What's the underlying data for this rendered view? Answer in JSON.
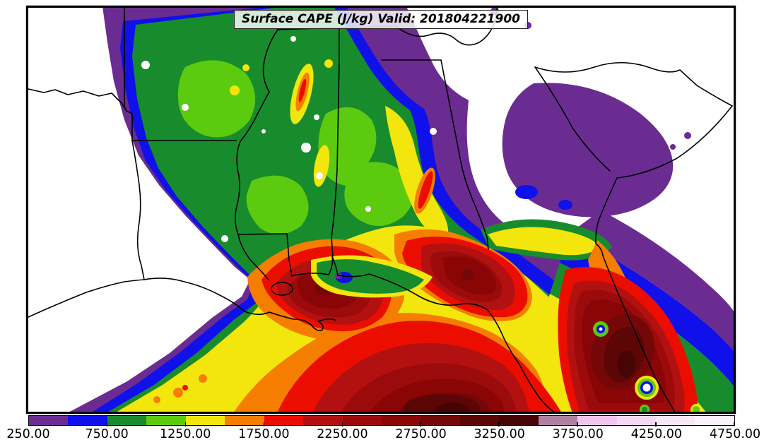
{
  "title": "Surface CAPE (J/kg) Valid: 201804221900",
  "chart_data": {
    "type": "heatmap",
    "subtype": "filled-contour-weather-map",
    "title": "Surface CAPE (J/kg) Valid: 201804221900",
    "parameter": "Surface CAPE",
    "units": "J/kg",
    "valid_time": "201804221900",
    "region_shown": "Southeastern United States and Gulf of Mexico with state borders",
    "levels": [
      250,
      500,
      750,
      1000,
      1250,
      1500,
      1750,
      2000,
      2250,
      2500,
      2750,
      3000,
      3250,
      3500,
      3750,
      4000,
      4250,
      4500,
      4750
    ],
    "colors": [
      "#6B2C91",
      "#1010EA",
      "#188C2C",
      "#5CCB0F",
      "#F2E60D",
      "#F57E00",
      "#EB0E00",
      "#B31111",
      "#9C0B0B",
      "#8A0505",
      "#740707",
      "#5D0606",
      "#470404",
      "#B0819F",
      "#F2C5EF",
      "#F6D8F4",
      "#F9E6F7",
      "#FCF2FB"
    ],
    "colorbar_tick_labels": [
      "250.00",
      "750.00",
      "1250.00",
      "1750.00",
      "2250.00",
      "2750.00",
      "3250.00",
      "3750.00",
      "4250.00",
      "4750.00"
    ],
    "colorbar_orientation": "horizontal",
    "background_color": "#FFFFFF",
    "border_color": "#000000",
    "legend_position": "bottom",
    "grid": false
  }
}
